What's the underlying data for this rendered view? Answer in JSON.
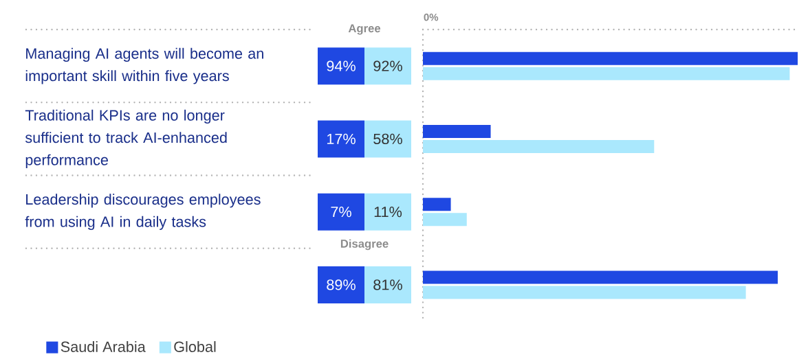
{
  "chart_data": {
    "type": "bar",
    "orientation": "horizontal",
    "categories": [
      "Managing AI agents will become an important skill within five years",
      "Traditional KPIs are no longer sufficient to track AI-enhanced performance",
      "Leadership discourages employees from using AI in daily tasks",
      null
    ],
    "series": [
      {
        "name": "Saudi Arabia",
        "color": "#1f48e2",
        "values": [
          94,
          17,
          7,
          89
        ],
        "value_labels": [
          "94%",
          "17%",
          "7%",
          "89%"
        ]
      },
      {
        "name": "Global",
        "color": "#aae8fd",
        "values": [
          92,
          58,
          11,
          81
        ],
        "value_labels": [
          "92%",
          "58%",
          "11%",
          "81%"
        ]
      }
    ],
    "annotations": [
      "0%",
      "Agree",
      "Disagree"
    ],
    "legend": "bottom left"
  }
}
